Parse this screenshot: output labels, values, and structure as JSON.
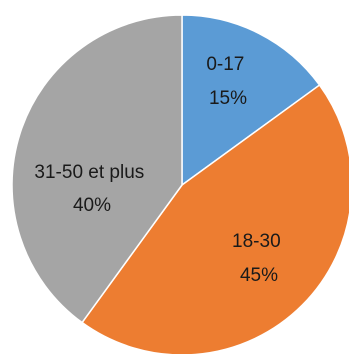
{
  "chart_data": {
    "type": "pie",
    "title": "",
    "categories": [
      "0-17",
      "18-30",
      "31-50 et plus"
    ],
    "values": [
      15,
      45,
      40
    ],
    "percent_labels": [
      "15%",
      "45%",
      "40%"
    ],
    "colors": [
      "#5b9bd5",
      "#ed7d31",
      "#a5a5a5"
    ],
    "start": "12 o'clock",
    "direction": "clockwise",
    "legend": "none"
  }
}
